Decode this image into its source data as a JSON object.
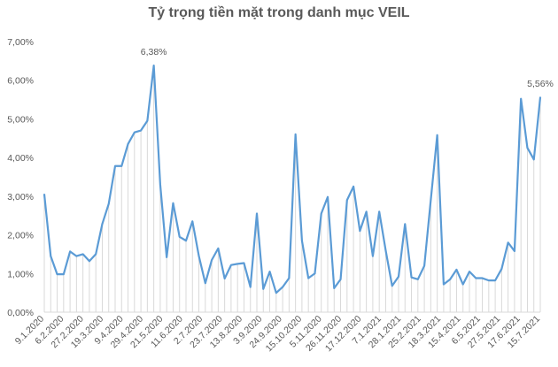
{
  "chart_data": {
    "type": "area",
    "title": "Tỷ trọng tiền mặt trong danh mục VEIL",
    "xlabel": "",
    "ylabel": "",
    "ylim": [
      0,
      7
    ],
    "y_ticks": [
      "0,00%",
      "1,00%",
      "2,00%",
      "3,00%",
      "4,00%",
      "5,00%",
      "6,00%",
      "7,00%"
    ],
    "grid": false,
    "x_tick_labels": [
      "9.1.2020",
      "6.2.2020",
      "27.2.2020",
      "19.3.2020",
      "9.4.2020",
      "29.4.2020",
      "21.5.2020",
      "11.6.2020",
      "2.7.2020",
      "23.7.2020",
      "13.8.2020",
      "3.9.2020",
      "24.9.2020",
      "15.10.2020",
      "5.11.2020",
      "26.11.2020",
      "17.12.2020",
      "7.1.2021",
      "28.1.2021",
      "25.2.2021",
      "18.3.2021",
      "15.4.2021",
      "6.5.2021",
      "27.5.2021",
      "17.6.2021",
      "15.7.2021"
    ],
    "values": [
      3.05,
      1.45,
      0.98,
      0.98,
      1.57,
      1.45,
      1.5,
      1.32,
      1.5,
      2.28,
      2.8,
      3.78,
      3.78,
      4.35,
      4.65,
      4.7,
      4.95,
      6.38,
      3.3,
      1.42,
      2.82,
      1.95,
      1.85,
      2.35,
      1.45,
      0.75,
      1.35,
      1.65,
      0.87,
      1.22,
      1.25,
      1.27,
      0.65,
      2.55,
      0.6,
      1.05,
      0.5,
      0.65,
      0.88,
      4.6,
      1.85,
      0.88,
      1.0,
      2.55,
      2.98,
      0.62,
      0.85,
      2.9,
      3.25,
      2.1,
      2.6,
      1.45,
      2.6,
      1.6,
      0.68,
      0.92,
      2.28,
      0.9,
      0.85,
      1.2,
      2.9,
      4.58,
      0.72,
      0.85,
      1.1,
      0.72,
      1.05,
      0.88,
      0.88,
      0.82,
      0.82,
      1.12,
      1.8,
      1.58,
      5.52,
      4.25,
      3.95,
      5.56
    ],
    "annotations": [
      {
        "index": 17,
        "text": "6,38%"
      },
      {
        "index": 77,
        "text": "5,56%"
      }
    ],
    "line_color": "#5B9BD5",
    "fill_color": "#D9D9D9"
  }
}
